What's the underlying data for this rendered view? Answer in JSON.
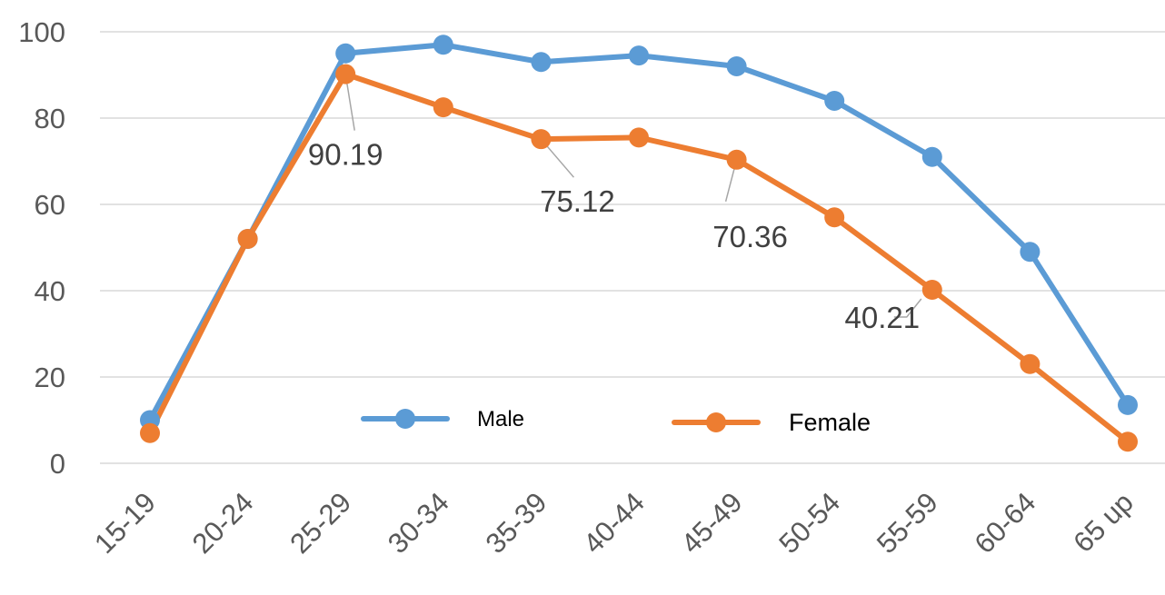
{
  "chart_data": {
    "type": "line",
    "categories": [
      "15-19",
      "20-24",
      "25-29",
      "30-34",
      "35-39",
      "40-44",
      "45-49",
      "50-54",
      "55-59",
      "60-64",
      "65 up"
    ],
    "ylim": [
      0,
      100
    ],
    "yticks": [
      "0",
      "20",
      "40",
      "60",
      "80",
      "100"
    ],
    "grid": true,
    "legend_position": "bottom-center (inside plot)",
    "series": [
      {
        "name": "Male",
        "color": "#5B9BD5",
        "values": [
          10,
          52,
          95,
          97,
          93,
          94.5,
          92,
          84,
          71,
          49,
          13.5
        ]
      },
      {
        "name": "Female",
        "color": "#ED7D31",
        "values": [
          7,
          52,
          90.19,
          82.5,
          75.12,
          75.5,
          70.36,
          57,
          40.21,
          23,
          5
        ]
      }
    ],
    "annotations": [
      {
        "series": "Female",
        "category": "25-29",
        "text": "90.19"
      },
      {
        "series": "Female",
        "category": "35-39",
        "text": "75.12"
      },
      {
        "series": "Female",
        "category": "45-49",
        "text": "70.36"
      },
      {
        "series": "Female",
        "category": "55-59",
        "text": "40.21"
      }
    ]
  }
}
